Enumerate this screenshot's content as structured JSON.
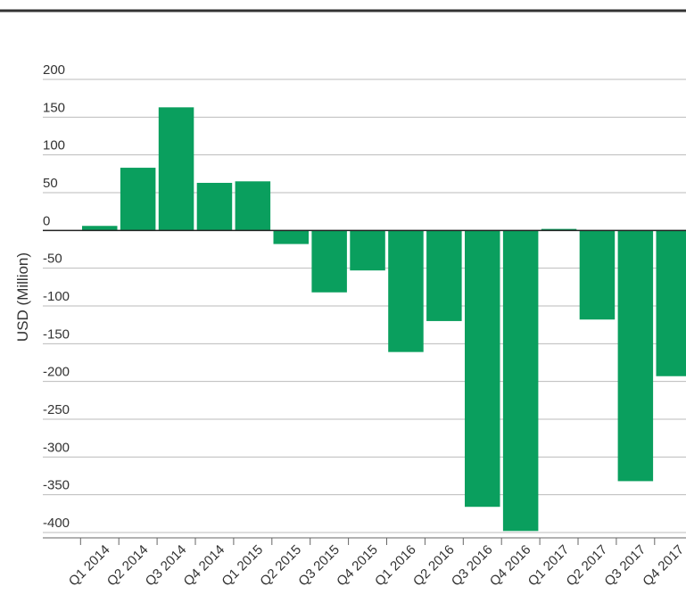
{
  "chart_data": {
    "type": "bar",
    "title": "",
    "xlabel": "",
    "ylabel": "USD (Million)",
    "categories": [
      "Q1 2014",
      "Q2 2014",
      "Q3 2014",
      "Q4 2014",
      "Q1 2015",
      "Q2 2015",
      "Q3 2015",
      "Q4 2015",
      "Q1 2016",
      "Q2 2016",
      "Q3 2016",
      "Q4 2016",
      "Q1 2017",
      "Q2 2017",
      "Q3 2017",
      "Q4 2017"
    ],
    "values": [
      6,
      83,
      163,
      63,
      65,
      -18,
      -82,
      -53,
      -161,
      -120,
      -366,
      -398,
      2,
      -118,
      -332,
      -193
    ],
    "ylim": [
      -400,
      200
    ],
    "yticks": [
      200,
      150,
      100,
      50,
      0,
      -50,
      -100,
      -150,
      -200,
      -250,
      -300,
      -350,
      -400
    ],
    "grid": true,
    "colors": {
      "bar": "#0a9f5e",
      "grid": "#bbbbbb",
      "zero_line": "#222222",
      "top_rule": "#333333"
    }
  }
}
